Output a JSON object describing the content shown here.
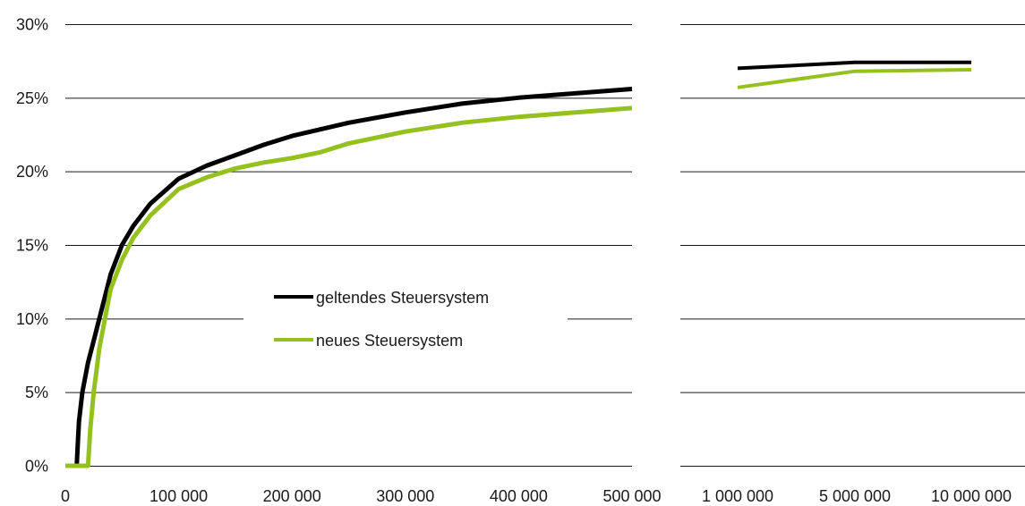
{
  "chart_data": [
    {
      "type": "line",
      "title": "",
      "xlabel": "",
      "ylabel": "",
      "xlim": [
        0,
        500000
      ],
      "ylim": [
        0,
        30
      ],
      "y_unit": "%",
      "grid": "horizontal",
      "x_ticks": [
        "0",
        "100 000",
        "200 000",
        "300 000",
        "400 000",
        "500 000"
      ],
      "y_ticks": [
        "0%",
        "5%",
        "10%",
        "15%",
        "20%",
        "25%",
        "30%"
      ],
      "legend_position": "center",
      "series": [
        {
          "name": "geltendes Steuersystem",
          "color": "#000000",
          "x": [
            0,
            10000,
            11000,
            12000,
            15000,
            20000,
            25000,
            30000,
            35000,
            40000,
            50000,
            60000,
            75000,
            100000,
            125000,
            150000,
            175000,
            200000,
            250000,
            300000,
            350000,
            400000,
            450000,
            500000
          ],
          "y": [
            0,
            0,
            1.5,
            3.0,
            5.0,
            7.0,
            8.5,
            10.0,
            11.5,
            13.0,
            15.0,
            16.3,
            17.8,
            19.5,
            20.4,
            21.1,
            21.8,
            22.4,
            23.3,
            24.0,
            24.6,
            25.0,
            25.3,
            25.6
          ]
        },
        {
          "name": "neues Steuersystem",
          "color": "#95c11f",
          "x": [
            0,
            18000,
            20000,
            22000,
            25000,
            30000,
            35000,
            40000,
            50000,
            60000,
            75000,
            100000,
            125000,
            150000,
            175000,
            200000,
            225000,
            250000,
            300000,
            350000,
            400000,
            450000,
            500000
          ],
          "y": [
            0,
            0,
            0,
            2.5,
            5.0,
            8.0,
            10.0,
            12.0,
            14.0,
            15.5,
            17.0,
            18.8,
            19.6,
            20.2,
            20.6,
            20.9,
            21.3,
            21.9,
            22.7,
            23.3,
            23.7,
            24.0,
            24.3
          ]
        }
      ]
    },
    {
      "type": "line",
      "title": "",
      "xlabel": "",
      "ylabel": "",
      "ylim": [
        0,
        30
      ],
      "grid": "horizontal",
      "categories": [
        "1 000 000",
        "5 000 000",
        "10 000 000"
      ],
      "series": [
        {
          "name": "geltendes Steuersystem",
          "color": "#000000",
          "values": [
            27.0,
            27.4,
            27.4
          ]
        },
        {
          "name": "neues Steuersystem",
          "color": "#95c11f",
          "values": [
            25.7,
            26.8,
            26.9
          ]
        }
      ]
    }
  ]
}
